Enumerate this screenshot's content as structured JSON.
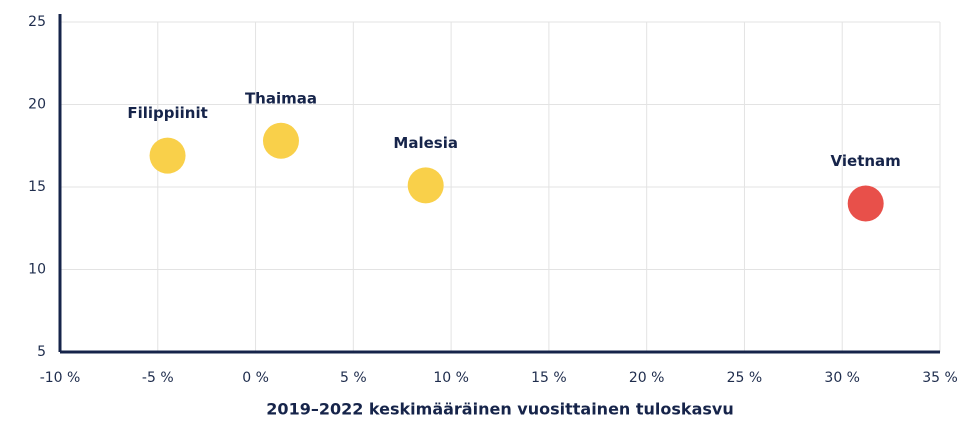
{
  "chart_data": {
    "type": "scatter",
    "x_label": "2019–2022 keskimääräinen vuosittainen tuloskasvu",
    "series": [
      {
        "name": "Filippiinit",
        "color": "#f9d04a",
        "x": [
          -4.5
        ],
        "values": [
          16.9
        ]
      },
      {
        "name": "Thaimaa",
        "color": "#f9d04a",
        "x": [
          1.3
        ],
        "values": [
          17.8
        ]
      },
      {
        "name": "Malesia",
        "color": "#f9d04a",
        "x": [
          8.7
        ],
        "values": [
          15.1
        ]
      },
      {
        "name": "Vietnam",
        "color": "#e8504a",
        "x": [
          31.2
        ],
        "values": [
          14.0
        ]
      }
    ],
    "xlim": [
      -10,
      35
    ],
    "xticks": [
      {
        "value": -10,
        "label": "-10 %"
      },
      {
        "value": -5,
        "label": "-5 %"
      },
      {
        "value": 0,
        "label": "0 %"
      },
      {
        "value": 5,
        "label": "5 %"
      },
      {
        "value": 10,
        "label": "10 %"
      },
      {
        "value": 15,
        "label": "15 %"
      },
      {
        "value": 20,
        "label": "20 %"
      },
      {
        "value": 25,
        "label": "25 %"
      },
      {
        "value": 30,
        "label": "30 %"
      },
      {
        "value": 35,
        "label": "35 %"
      }
    ],
    "ylim": [
      5,
      25
    ],
    "yticks": [
      5,
      10,
      15,
      20,
      25
    ],
    "grid": true
  }
}
